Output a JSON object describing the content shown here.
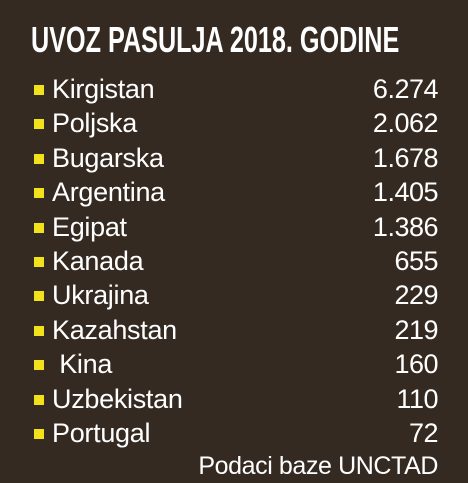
{
  "title": "UVOZ PASULJA 2018. GODINE",
  "colors": {
    "background": "#352a22",
    "bullet": "#f2e21c",
    "text": "#ffffff"
  },
  "rows": [
    {
      "country": "Kirgistan",
      "value": "6.274"
    },
    {
      "country": "Poljska",
      "value": "2.062"
    },
    {
      "country": "Bugarska",
      "value": "1.678"
    },
    {
      "country": "Argentina",
      "value": "1.405"
    },
    {
      "country": "Egipat",
      "value": "1.386"
    },
    {
      "country": "Kanada",
      "value": "655"
    },
    {
      "country": "Ukrajina",
      "value": "229"
    },
    {
      "country": "Kazahstan",
      "value": "219"
    },
    {
      "country": " Kina",
      "value": "160"
    },
    {
      "country": "Uzbekistan",
      "value": "110"
    },
    {
      "country": "Portugal",
      "value": "72"
    }
  ],
  "source": "Podaci baze UNCTAD"
}
